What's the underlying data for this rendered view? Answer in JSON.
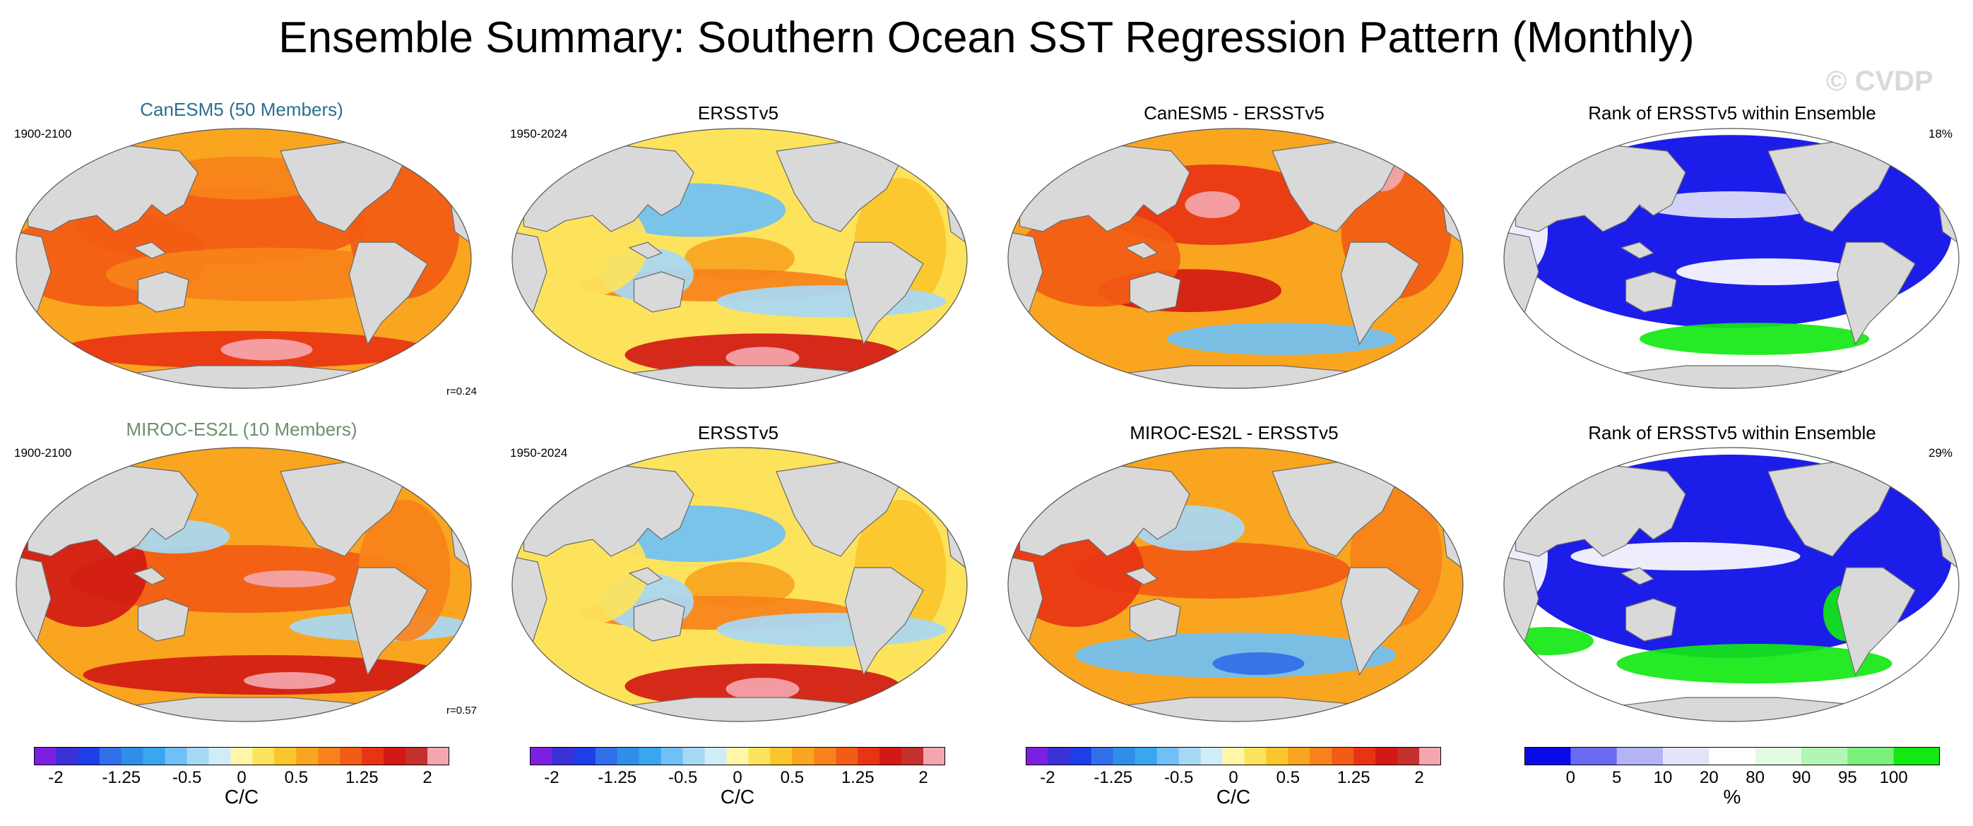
{
  "title": "Ensemble Summary: Southern Ocean SST Regression Pattern (Monthly)",
  "watermark": "© CVDP",
  "colors": {
    "model1_title": "#2a6f8f",
    "model2_title": "#6f8f6f",
    "land": "#d9d9d9",
    "coast": "#6a6a6a"
  },
  "rows": [
    {
      "panels": [
        {
          "title": "CanESM5 (50 Members)",
          "title_color": "#2a6f8f",
          "period": "1900-2100",
          "corr": "r=0.24",
          "kind": "model"
        },
        {
          "title": "ERSSTv5",
          "period": "1950-2024",
          "kind": "obs"
        },
        {
          "title": "CanESM5 - ERSSTv5",
          "kind": "diff"
        },
        {
          "title": "Rank of ERSSTv5 within Ensemble",
          "percent": "18%",
          "kind": "rank"
        }
      ]
    },
    {
      "panels": [
        {
          "title": "MIROC-ES2L (10 Members)",
          "title_color": "#6f8f6f",
          "period": "1900-2100",
          "corr": "r=0.57",
          "kind": "model"
        },
        {
          "title": "ERSSTv5",
          "period": "1950-2024",
          "kind": "obs"
        },
        {
          "title": "MIROC-ES2L - ERSSTv5",
          "kind": "diff"
        },
        {
          "title": "Rank of ERSSTv5 within Ensemble",
          "percent": "29%",
          "kind": "rank"
        }
      ]
    }
  ],
  "colorbars": [
    {
      "unit": "C/C",
      "tick_labels": [
        "-2",
        "-1.25",
        "-0.5",
        "0",
        "0.5",
        "1.25",
        "2"
      ]
    },
    {
      "unit": "C/C",
      "tick_labels": [
        "-2",
        "-1.25",
        "-0.5",
        "0",
        "0.5",
        "1.25",
        "2"
      ]
    },
    {
      "unit": "C/C",
      "tick_labels": [
        "-2",
        "-1.25",
        "-0.5",
        "0",
        "0.5",
        "1.25",
        "2"
      ]
    },
    {
      "unit": "%",
      "tick_labels": [
        "0",
        "5",
        "10",
        "20",
        "80",
        "90",
        "95",
        "100"
      ]
    }
  ],
  "chart_data": {
    "type": "heatmap",
    "description_levels": {
      "sst_levels": [
        -2.25,
        -2,
        -1.75,
        -1.5,
        -1.25,
        -1,
        -0.75,
        -0.5,
        -0.25,
        0,
        0.25,
        0.5,
        0.75,
        1,
        1.25,
        1.5,
        1.75,
        2,
        2.25
      ],
      "sst_colors": [
        "#7b1fe0",
        "#3b2fd6",
        "#1f3de8",
        "#2f6fe8",
        "#2f8fe8",
        "#3aa6f0",
        "#6fc0f5",
        "#a8d8f5",
        "#d0ecf7",
        "#fff7a8",
        "#fde35c",
        "#fbc62b",
        "#f9a51f",
        "#f7821a",
        "#f25c14",
        "#e83414",
        "#d11a14",
        "#c4302e",
        "#f4a6ae"
      ],
      "rank_levels": [
        0,
        5,
        10,
        20,
        80,
        90,
        95,
        100
      ],
      "rank_colors": [
        "#0a0ae8",
        "#6a6af0",
        "#b4b4f5",
        "#e3e3fa",
        "#ffffff",
        "#e3fae3",
        "#b4f5b4",
        "#7af07a",
        "#12e812"
      ]
    },
    "units": "C/C"
  }
}
